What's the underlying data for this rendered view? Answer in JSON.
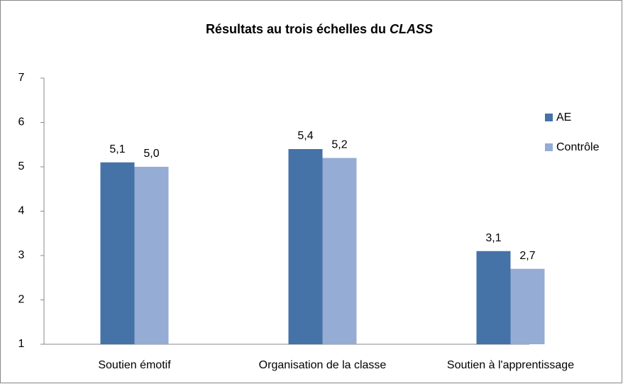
{
  "chart_data": {
    "type": "bar",
    "title": [
      "Résultats au trois échelles du ",
      "CLASS"
    ],
    "categories": [
      "Soutien émotif",
      "Organisation de la classe",
      "Soutien à l'apprentissage"
    ],
    "series": [
      {
        "name": "AE",
        "color": "#4572a7",
        "values": [
          5.1,
          5.4,
          3.1
        ],
        "value_labels": [
          "5,1",
          "5,4",
          "3,1"
        ]
      },
      {
        "name": "Contrôle",
        "color": "#95acd4",
        "values": [
          5.0,
          5.2,
          2.7
        ],
        "value_labels": [
          "5,0",
          "5,2",
          "2,7"
        ]
      }
    ],
    "ylim": [
      1,
      7
    ],
    "yticks": [
      1,
      2,
      3,
      4,
      5,
      6,
      7
    ],
    "grid": false,
    "legend": "right"
  }
}
